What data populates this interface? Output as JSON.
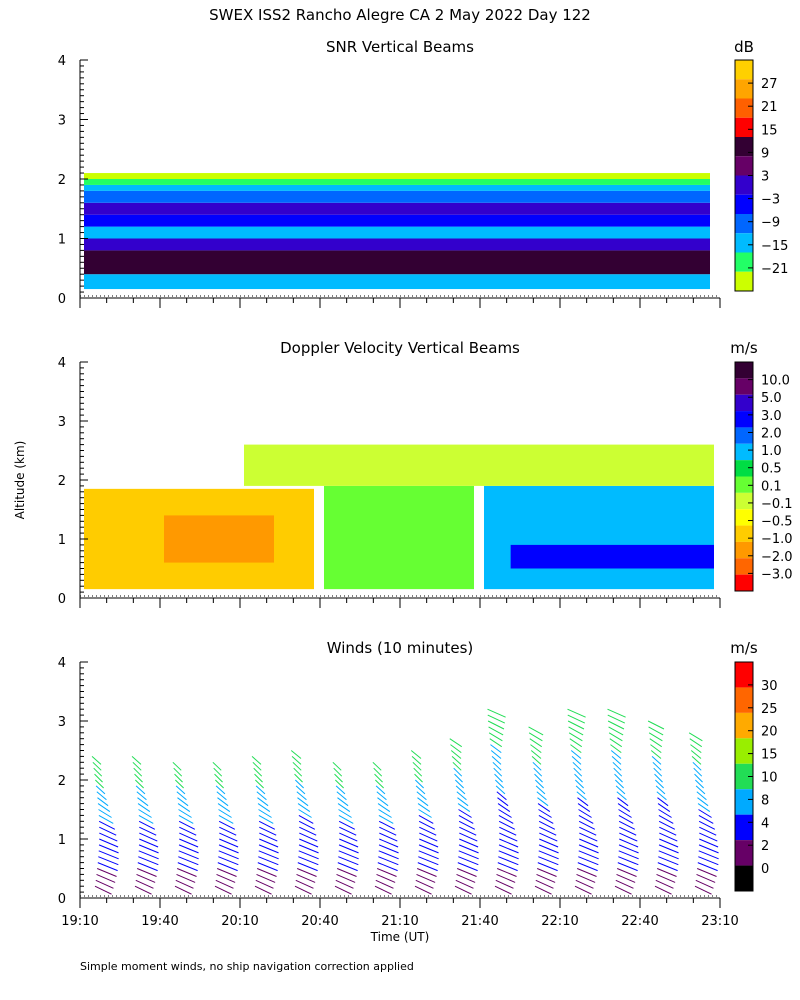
{
  "page": {
    "title": "SWEX ISS2 Rancho Alegre CA   2 May 2022 Day 122",
    "footer_note": "Simple moment winds, no ship navigation correction applied",
    "y_axis_label": "Altitude (km)",
    "x_axis_label": "Time (UT)"
  },
  "chart_data": [
    {
      "id": "snr",
      "type": "heatmap",
      "title": "SNR Vertical Beams",
      "ylabel": "Altitude (km)",
      "ylim": [
        0,
        4
      ],
      "yticks": [
        "0",
        "1",
        "2",
        "3",
        "4"
      ],
      "xlim_minutes": [
        0,
        240
      ],
      "colorbar": {
        "unit": "dB",
        "labels": [
          "27",
          "21",
          "15",
          "9",
          "3",
          "−3",
          "−9",
          "−15",
          "−21"
        ],
        "colors": [
          "#ffd000",
          "#ffa500",
          "#ff6000",
          "#ff0000",
          "#330033",
          "#660066",
          "#3300cc",
          "#0000ff",
          "#0066ff",
          "#00bbff",
          "#22ff66",
          "#ccff00"
        ]
      },
      "layers": [
        {
          "top_km": 0.15,
          "bottom_km": 0.0,
          "color": "#ffffff"
        },
        {
          "top_km": 0.4,
          "bottom_km": 0.15,
          "color": "#00bbff"
        },
        {
          "top_km": 0.8,
          "bottom_km": 0.4,
          "color": "#330033"
        },
        {
          "top_km": 1.0,
          "bottom_km": 0.8,
          "color": "#3300cc"
        },
        {
          "top_km": 1.2,
          "bottom_km": 1.0,
          "color": "#00bbff"
        },
        {
          "top_km": 1.4,
          "bottom_km": 1.2,
          "color": "#0000ff"
        },
        {
          "top_km": 1.6,
          "bottom_km": 1.4,
          "color": "#3300cc"
        },
        {
          "top_km": 1.8,
          "bottom_km": 1.6,
          "color": "#0066ff"
        },
        {
          "top_km": 1.9,
          "bottom_km": 1.8,
          "color": "#00bbff"
        },
        {
          "top_km": 2.0,
          "bottom_km": 1.9,
          "color": "#22ff66"
        },
        {
          "top_km": 2.1,
          "bottom_km": 2.0,
          "color": "#ccff00"
        }
      ]
    },
    {
      "id": "doppler",
      "type": "heatmap",
      "title": "Doppler Velocity Vertical Beams",
      "ylabel": "Altitude (km)",
      "ylim": [
        0,
        4
      ],
      "yticks": [
        "0",
        "1",
        "2",
        "3",
        "4"
      ],
      "xlim_minutes": [
        0,
        240
      ],
      "colorbar": {
        "unit": "m/s",
        "labels": [
          "10.0",
          "5.0",
          "3.0",
          "2.0",
          "1.0",
          "0.5",
          "0.1",
          "−0.1",
          "−0.5",
          "−1.0",
          "−2.0",
          "−3.0"
        ],
        "colors": [
          "#330033",
          "#660066",
          "#3300cc",
          "#0000ff",
          "#0066ff",
          "#00bbff",
          "#00dd44",
          "#66ff33",
          "#ccff33",
          "#ffff00",
          "#ffcc00",
          "#ff9900",
          "#ff6600",
          "#ff0000"
        ]
      },
      "regions": [
        {
          "x0_min": 0,
          "x1_min": 90,
          "bottom_km": 0.15,
          "top_km": 1.85,
          "color": "#ffcc00"
        },
        {
          "x0_min": 30,
          "x1_min": 75,
          "bottom_km": 0.6,
          "top_km": 1.4,
          "color": "#ff9900"
        },
        {
          "x0_min": 90,
          "x1_min": 150,
          "bottom_km": 0.15,
          "top_km": 1.9,
          "color": "#66ff33"
        },
        {
          "x0_min": 150,
          "x1_min": 240,
          "bottom_km": 0.15,
          "top_km": 1.9,
          "color": "#00bbff"
        },
        {
          "x0_min": 160,
          "x1_min": 240,
          "bottom_km": 0.5,
          "top_km": 0.9,
          "color": "#0000ff"
        },
        {
          "x0_min": 60,
          "x1_min": 240,
          "bottom_km": 1.9,
          "top_km": 2.6,
          "color": "#ccff33"
        }
      ]
    },
    {
      "id": "winds",
      "type": "scatter",
      "title": "Winds (10 minutes)",
      "ylabel": "Altitude (km)",
      "xlabel": "Time (UT)",
      "ylim": [
        0,
        4
      ],
      "yticks": [
        "0",
        "1",
        "2",
        "3",
        "4"
      ],
      "xlim_minutes": [
        0,
        240
      ],
      "xticks": [
        "19:10",
        "19:40",
        "20:10",
        "20:40",
        "21:10",
        "21:40",
        "22:10",
        "22:40",
        "23:10"
      ],
      "colorbar": {
        "unit": "m/s",
        "labels": [
          "30",
          "25",
          "20",
          "15",
          "10",
          "8",
          "4",
          "2",
          "0"
        ],
        "colors": [
          "#ff0000",
          "#ff6600",
          "#ffaa00",
          "#99ee00",
          "#22dd55",
          "#00aaff",
          "#0000ff",
          "#660066",
          "#000000"
        ]
      },
      "profile_times_min": [
        5,
        20,
        35,
        50,
        65,
        80,
        95,
        110,
        125,
        140,
        155,
        170,
        185,
        200,
        215,
        230
      ],
      "profile_top_km": [
        2.5,
        2.5,
        2.4,
        2.4,
        2.5,
        2.6,
        2.4,
        2.4,
        2.6,
        2.8,
        3.3,
        3.0,
        3.2,
        3.2,
        3.1,
        2.9
      ]
    }
  ]
}
